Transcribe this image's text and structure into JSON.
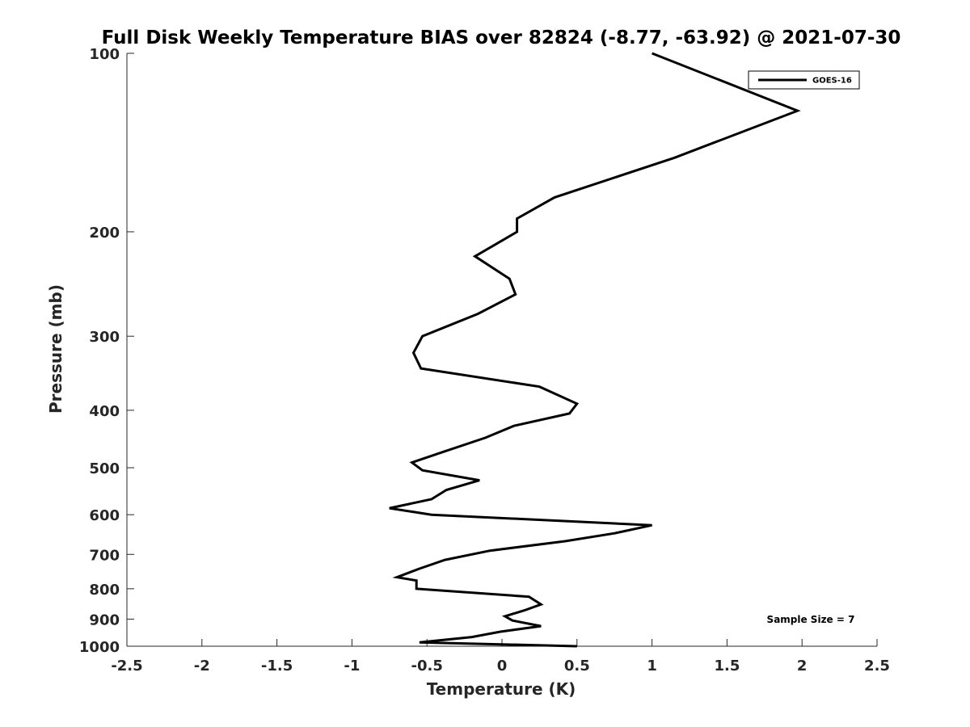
{
  "chart_data": {
    "type": "line",
    "title": "Full Disk Weekly Temperature BIAS over 82824 (-8.77, -63.92) @ 2021-07-30",
    "xlabel": "Temperature (K)",
    "ylabel": "Pressure (mb)",
    "xlim": [
      -2.5,
      2.5
    ],
    "ylim": [
      100,
      1000
    ],
    "yscale": "log",
    "y_reversed": true,
    "x_ticks": [
      "-2.5",
      "-2",
      "-1.5",
      "-1",
      "-0.5",
      "0",
      "0.5",
      "1",
      "1.5",
      "2",
      "2.5"
    ],
    "y_ticks": [
      "100",
      "200",
      "300",
      "400",
      "500",
      "600",
      "700",
      "800",
      "900",
      "1000"
    ],
    "grid": false,
    "legend_position": "top-right",
    "annotation": "Sample Size = 7",
    "series": [
      {
        "name": "GOES-16",
        "color": "#000000",
        "points": [
          [
            1.0,
            100
          ],
          [
            1.97,
            125
          ],
          [
            1.15,
            150
          ],
          [
            0.35,
            175
          ],
          [
            0.1,
            190
          ],
          [
            0.1,
            200
          ],
          [
            -0.18,
            220
          ],
          [
            0.05,
            240
          ],
          [
            0.09,
            255
          ],
          [
            -0.16,
            275
          ],
          [
            -0.53,
            300
          ],
          [
            -0.59,
            320
          ],
          [
            -0.54,
            340
          ],
          [
            0.25,
            365
          ],
          [
            0.5,
            390
          ],
          [
            0.45,
            405
          ],
          [
            0.08,
            425
          ],
          [
            -0.11,
            445
          ],
          [
            -0.39,
            470
          ],
          [
            -0.6,
            490
          ],
          [
            -0.53,
            505
          ],
          [
            -0.15,
            525
          ],
          [
            -0.37,
            545
          ],
          [
            -0.47,
            565
          ],
          [
            -0.75,
            585
          ],
          [
            -0.47,
            600
          ],
          [
            1.0,
            625
          ],
          [
            0.75,
            645
          ],
          [
            0.42,
            665
          ],
          [
            -0.08,
            690
          ],
          [
            -0.38,
            715
          ],
          [
            -0.55,
            740
          ],
          [
            -0.7,
            765
          ],
          [
            -0.57,
            775
          ],
          [
            -0.57,
            800
          ],
          [
            0.18,
            825
          ],
          [
            0.26,
            850
          ],
          [
            0.15,
            870
          ],
          [
            0.02,
            890
          ],
          [
            0.07,
            905
          ],
          [
            0.26,
            925
          ],
          [
            -0.01,
            945
          ],
          [
            -0.2,
            965
          ],
          [
            -0.55,
            985
          ],
          [
            0.5,
            1000
          ]
        ]
      }
    ]
  }
}
